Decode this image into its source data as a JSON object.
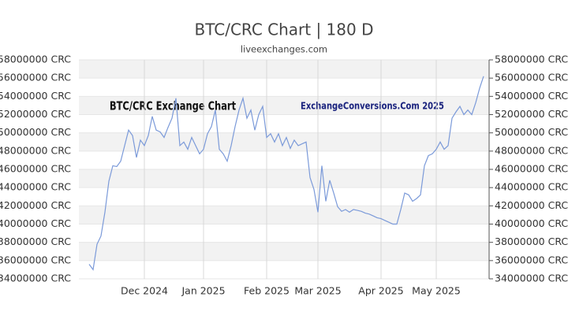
{
  "chart_data": {
    "type": "line",
    "title": "BTC/CRC Chart | 180 D",
    "subtitle": "liveexchanges.com",
    "annotations": [
      "BTC/CRC Exchange Chart",
      "ExchangeConversions.Com 2025"
    ],
    "categories": [
      null,
      null,
      null,
      null,
      null,
      null,
      null,
      null,
      null,
      null,
      null,
      null,
      null,
      null,
      "Dec 2024",
      null,
      null,
      null,
      null,
      null,
      null,
      null,
      null,
      null,
      null,
      null,
      null,
      null,
      null,
      "Jan 2025",
      null,
      null,
      null,
      null,
      null,
      null,
      null,
      null,
      null,
      null,
      null,
      null,
      null,
      null,
      null,
      "Feb 2025",
      null,
      null,
      null,
      null,
      null,
      null,
      null,
      null,
      null,
      null,
      null,
      null,
      "Mar 2025",
      null,
      null,
      null,
      null,
      null,
      null,
      null,
      null,
      null,
      null,
      null,
      null,
      null,
      null,
      null,
      "Apr 2025",
      null,
      null,
      null,
      null,
      null,
      null,
      null,
      null,
      null,
      null,
      null,
      null,
      null,
      "May 2025",
      null,
      null,
      null,
      null,
      null,
      null,
      null,
      null,
      null,
      null,
      null,
      null
    ],
    "values": [
      35600000,
      35000000,
      37800000,
      38700000,
      41300000,
      44700000,
      46400000,
      46300000,
      46900000,
      48600000,
      50300000,
      49700000,
      47300000,
      49200000,
      48600000,
      49700000,
      51800000,
      50300000,
      50100000,
      49500000,
      50600000,
      51600000,
      53800000,
      48600000,
      49000000,
      48200000,
      49500000,
      48600000,
      47700000,
      48200000,
      49900000,
      50700000,
      52500000,
      48200000,
      47700000,
      46900000,
      48600000,
      50700000,
      52500000,
      53800000,
      51600000,
      52500000,
      50300000,
      52000000,
      52900000,
      49500000,
      49900000,
      49000000,
      49900000,
      48600000,
      49500000,
      48300000,
      49200000,
      48600000,
      48800000,
      49000000,
      45100000,
      43800000,
      41300000,
      46400000,
      42500000,
      44800000,
      43400000,
      41900000,
      41400000,
      41600000,
      41300000,
      41600000,
      41500000,
      41400000,
      41200000,
      41100000,
      40900000,
      40700000,
      40600000,
      40400000,
      40200000,
      40000000,
      40000000,
      41600000,
      43400000,
      43200000,
      42500000,
      42800000,
      43200000,
      46400000,
      47500000,
      47700000,
      48200000,
      49000000,
      48200000,
      48600000,
      51600000,
      52300000,
      52900000,
      52000000,
      52500000,
      52000000,
      53300000,
      54900000,
      56200000
    ],
    "color": "#7b9ad9",
    "ylim": [
      34000000,
      58000000
    ],
    "yticks": [
      {
        "value": 34000000,
        "label": "34000000 CRC"
      },
      {
        "value": 36000000,
        "label": "36000000 CRC"
      },
      {
        "value": 38000000,
        "label": "38000000 CRC"
      },
      {
        "value": 40000000,
        "label": "40000000 CRC"
      },
      {
        "value": 42000000,
        "label": "42000000 CRC"
      },
      {
        "value": 44000000,
        "label": "44000000 CRC"
      },
      {
        "value": 46000000,
        "label": "46000000 CRC"
      },
      {
        "value": 48000000,
        "label": "48000000 CRC"
      },
      {
        "value": 50000000,
        "label": "50000000 CRC"
      },
      {
        "value": 52000000,
        "label": "52000000 CRC"
      },
      {
        "value": 54000000,
        "label": "54000000 CRC"
      },
      {
        "value": 56000000,
        "label": "56000000 CRC"
      },
      {
        "value": 58000000,
        "label": "58000000 CRC"
      }
    ],
    "grid": true
  }
}
